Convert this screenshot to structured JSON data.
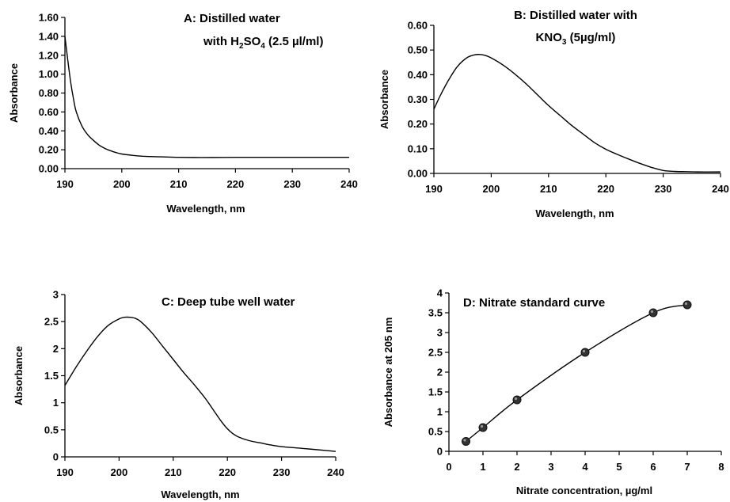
{
  "chart_data": [
    {
      "id": "A",
      "type": "line",
      "title_lines": [
        [
          {
            "t": "A: Distilled water"
          }
        ],
        [
          {
            "t": "with H"
          },
          {
            "t": "2",
            "sub": true
          },
          {
            "t": "SO"
          },
          {
            "t": "4",
            "sub": true
          },
          {
            "t": " (2.5 µl/ml)"
          }
        ]
      ],
      "xlabel": "Wavelength, nm",
      "ylabel": "Absorbance",
      "xlim": [
        190,
        240
      ],
      "ylim": [
        0,
        1.6
      ],
      "xticks": [
        190,
        200,
        210,
        220,
        230,
        240
      ],
      "yticks": [
        "0.00",
        "0.20",
        "0.40",
        "0.60",
        "0.80",
        "1.00",
        "1.20",
        "1.40",
        "1.60"
      ],
      "grid": false,
      "series": [
        {
          "x": [
            190,
            190.5,
            191,
            191.5,
            192,
            193,
            194,
            195,
            196,
            197,
            198,
            199,
            200,
            202,
            204,
            207,
            210,
            214,
            218,
            222,
            226,
            230,
            235,
            240
          ],
          "y": [
            1.4,
            1.15,
            0.92,
            0.74,
            0.6,
            0.45,
            0.36,
            0.3,
            0.25,
            0.215,
            0.19,
            0.17,
            0.155,
            0.14,
            0.13,
            0.125,
            0.12,
            0.118,
            0.119,
            0.12,
            0.12,
            0.12,
            0.12,
            0.12
          ]
        }
      ]
    },
    {
      "id": "B",
      "type": "line",
      "title_lines": [
        [
          {
            "t": "B: Distilled water with"
          }
        ],
        [
          {
            "t": "KNO"
          },
          {
            "t": "3",
            "sub": true
          },
          {
            "t": " (5µg/ml)"
          }
        ]
      ],
      "xlabel": "Wavelength, nm",
      "ylabel": "Absorbance",
      "xlim": [
        190,
        240
      ],
      "ylim": [
        0,
        0.6
      ],
      "xticks": [
        190,
        200,
        210,
        220,
        230,
        240
      ],
      "yticks": [
        "0.00",
        "0.10",
        "0.20",
        "0.30",
        "0.40",
        "0.50",
        "0.60"
      ],
      "grid": false,
      "series": [
        {
          "x": [
            190,
            191,
            192,
            193,
            194,
            195,
            196,
            197,
            198,
            199,
            200,
            202,
            204,
            206,
            208,
            210,
            212,
            214,
            216,
            218,
            220,
            222,
            224,
            226,
            228,
            230,
            232,
            234,
            236,
            240
          ],
          "y": [
            0.26,
            0.31,
            0.355,
            0.395,
            0.43,
            0.455,
            0.472,
            0.48,
            0.482,
            0.478,
            0.468,
            0.44,
            0.405,
            0.365,
            0.32,
            0.275,
            0.235,
            0.195,
            0.16,
            0.125,
            0.098,
            0.077,
            0.058,
            0.04,
            0.024,
            0.012,
            0.008,
            0.007,
            0.006,
            0.006
          ]
        }
      ]
    },
    {
      "id": "C",
      "type": "line",
      "title_lines": [
        [
          {
            "t": "C: Deep tube well water"
          }
        ]
      ],
      "xlabel": "Wavelength, nm",
      "ylabel": "Absorbance",
      "xlim": [
        190,
        240
      ],
      "ylim": [
        0,
        3
      ],
      "xticks": [
        190,
        200,
        210,
        220,
        230,
        240
      ],
      "yticks": [
        "0",
        "0.5",
        "1",
        "1.5",
        "2",
        "2.5",
        "3"
      ],
      "grid": false,
      "series": [
        {
          "x": [
            190,
            192,
            194,
            196,
            198,
            200,
            201,
            202,
            203,
            204,
            206,
            208,
            210,
            212,
            214,
            216,
            218,
            219,
            220,
            221,
            222,
            224,
            226,
            228,
            230,
            234,
            238,
            240
          ],
          "y": [
            1.32,
            1.65,
            1.95,
            2.22,
            2.43,
            2.55,
            2.58,
            2.58,
            2.56,
            2.5,
            2.3,
            2.05,
            1.8,
            1.55,
            1.32,
            1.07,
            0.78,
            0.64,
            0.52,
            0.43,
            0.37,
            0.3,
            0.26,
            0.22,
            0.19,
            0.155,
            0.12,
            0.1
          ]
        }
      ]
    },
    {
      "id": "D",
      "type": "scatter",
      "title_lines": [
        [
          {
            "t": "D: Nitrate standard curve"
          }
        ]
      ],
      "xlabel": "Nitrate concentration, µg/ml",
      "ylabel": "Absorbance at 205 nm",
      "xlim": [
        0,
        8
      ],
      "ylim": [
        0,
        4
      ],
      "xticks": [
        0,
        1,
        2,
        3,
        4,
        5,
        6,
        7,
        8
      ],
      "yticks": [
        "0",
        "0.5",
        "1",
        "1.5",
        "2",
        "2.5",
        "3",
        "3.5",
        "4"
      ],
      "grid": false,
      "series": [
        {
          "x": [
            0.5,
            1,
            2,
            4,
            6,
            7
          ],
          "y": [
            0.25,
            0.6,
            1.3,
            2.5,
            3.5,
            3.7
          ],
          "markers": true,
          "smooth_line": true
        }
      ]
    }
  ]
}
